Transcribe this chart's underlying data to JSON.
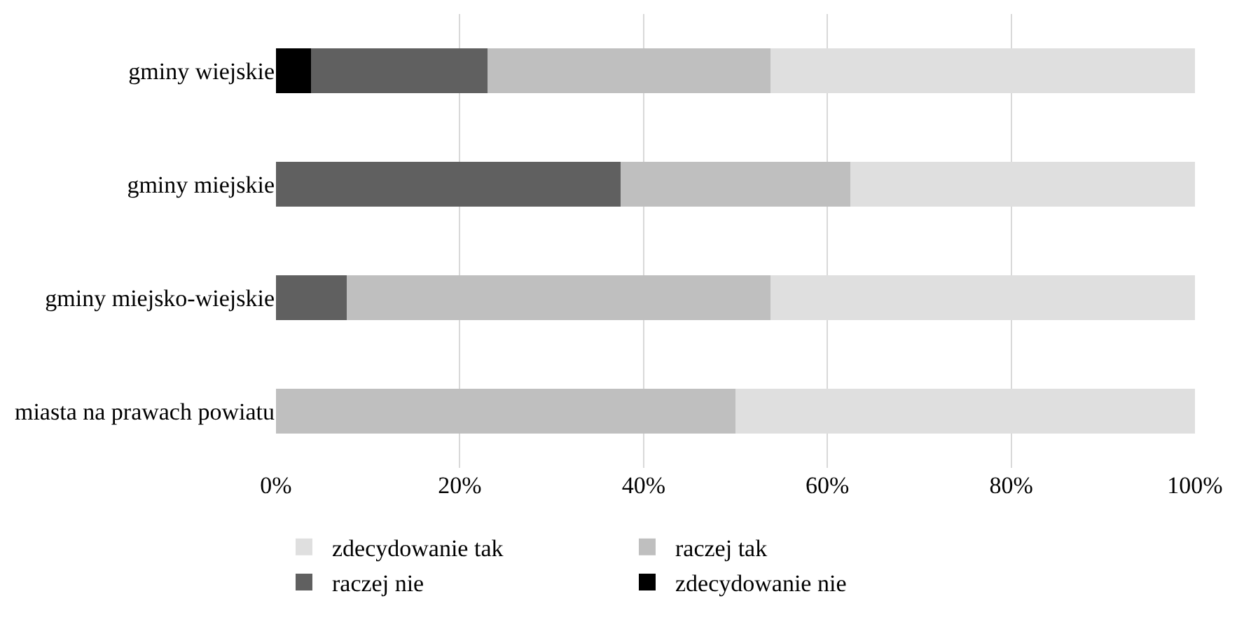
{
  "chart_data": {
    "type": "bar",
    "orientation": "horizontal",
    "stacked": true,
    "categories": [
      "gminy wiejskie",
      "gminy miejskie",
      "gminy miejsko-wiejskie",
      "miasta na prawach powiatu"
    ],
    "series": [
      {
        "name": "zdecydowanie nie",
        "color": "#000000",
        "values": [
          3.8,
          0,
          0,
          0
        ]
      },
      {
        "name": "raczej nie",
        "color": "#606060",
        "values": [
          19.2,
          37.5,
          7.7,
          0
        ]
      },
      {
        "name": "raczej tak",
        "color": "#bfbfbf",
        "values": [
          30.8,
          25,
          46.1,
          50
        ]
      },
      {
        "name": "zdecydowanie tak",
        "color": "#dfdfdf",
        "values": [
          46.2,
          37.5,
          46.2,
          50
        ]
      }
    ],
    "xlim": [
      0,
      100
    ],
    "xticks": [
      {
        "value": 0,
        "label": "0%"
      },
      {
        "value": 20,
        "label": "20%"
      },
      {
        "value": 40,
        "label": "40%"
      },
      {
        "value": 60,
        "label": "60%"
      },
      {
        "value": 80,
        "label": "80%"
      },
      {
        "value": 100,
        "label": "100%"
      }
    ],
    "grid": "x",
    "legend": "bottom"
  }
}
